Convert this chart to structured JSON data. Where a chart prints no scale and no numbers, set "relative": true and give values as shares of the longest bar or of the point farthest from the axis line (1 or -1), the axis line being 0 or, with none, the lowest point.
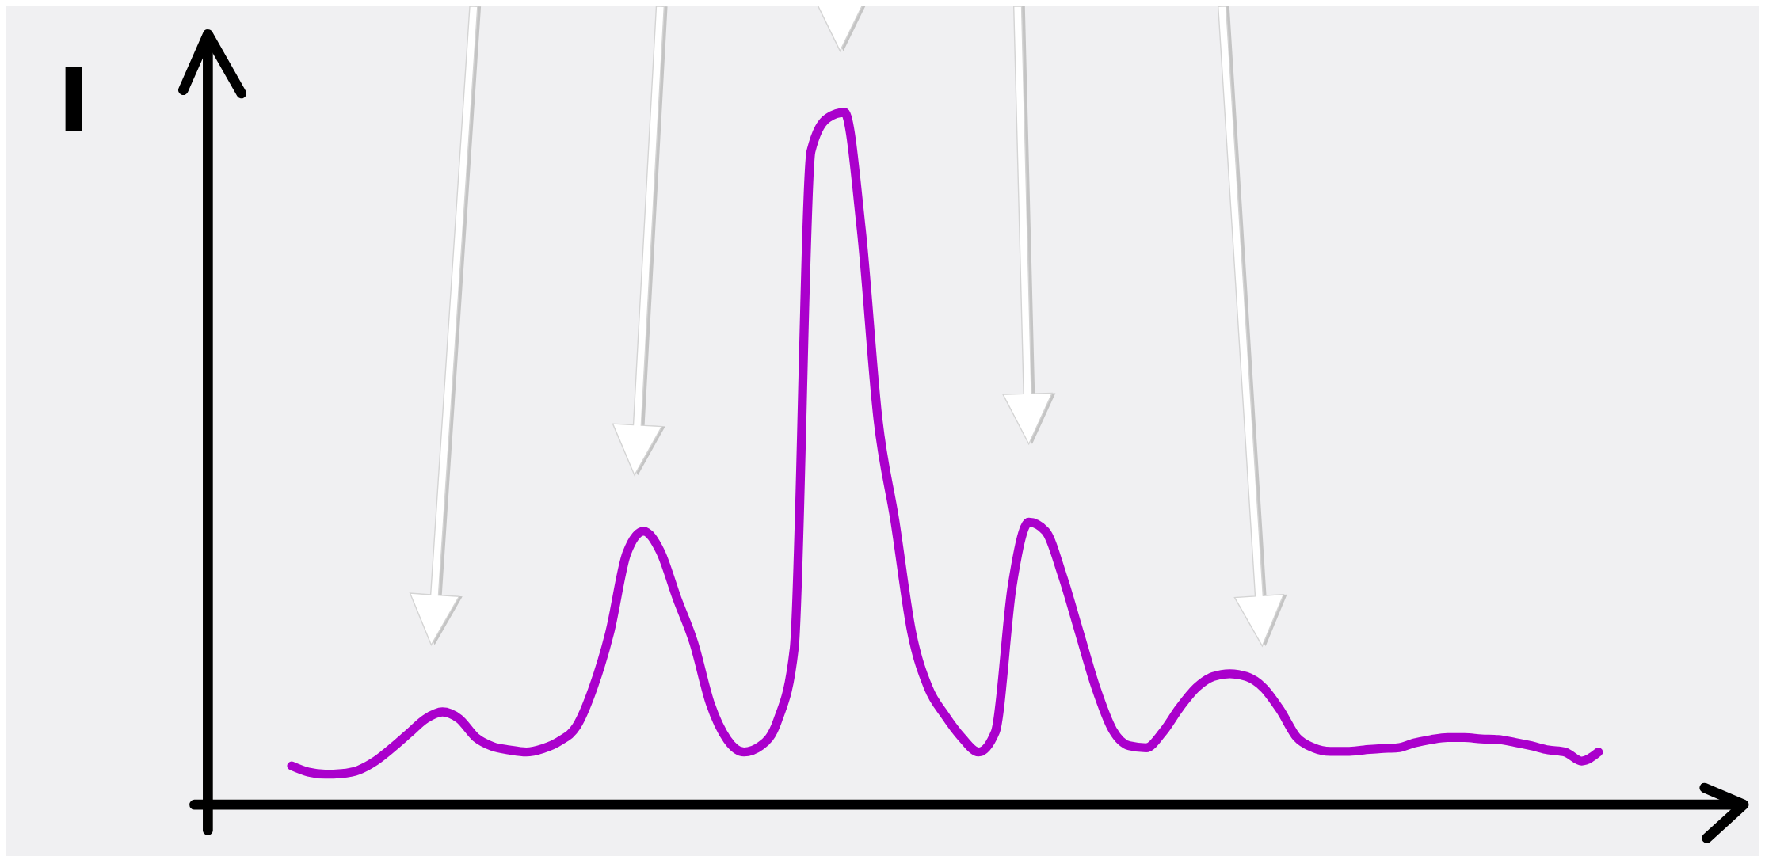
{
  "chart_data": {
    "type": "line",
    "ylabel": "I",
    "relative": true,
    "color": "#aa00cc",
    "categories": [
      null,
      null,
      null,
      null,
      null,
      null,
      null,
      null,
      null,
      null,
      null,
      null,
      null,
      null,
      null,
      null,
      null,
      null,
      null,
      null,
      null,
      null,
      null,
      null,
      null,
      null,
      null,
      null,
      null,
      null,
      null,
      null,
      null,
      null,
      null,
      null,
      null,
      null,
      null,
      null,
      null,
      null,
      null,
      null,
      null,
      null,
      null,
      null,
      null,
      null,
      null,
      null,
      null,
      null,
      null,
      null,
      null,
      null,
      null,
      null,
      null,
      null,
      null,
      null,
      null,
      null,
      null,
      null,
      null,
      null,
      null,
      null,
      null,
      null,
      null,
      null,
      null,
      null,
      null
    ],
    "values": [
      0.056,
      0.047,
      0.044,
      0.045,
      0.05,
      0.063,
      0.082,
      0.103,
      0.124,
      0.134,
      0.124,
      0.097,
      0.084,
      0.079,
      0.076,
      0.081,
      0.092,
      0.113,
      0.169,
      0.25,
      0.363,
      0.395,
      0.366,
      0.298,
      0.234,
      0.145,
      0.094,
      0.076,
      0.085,
      0.121,
      0.226,
      0.944,
      0.992,
      1,
      0.831,
      0.556,
      0.411,
      0.25,
      0.169,
      0.129,
      0.097,
      0.076,
      0.105,
      0.315,
      0.408,
      0.395,
      0.331,
      0.25,
      0.169,
      0.108,
      0.085,
      0.082,
      0.105,
      0.14,
      0.169,
      0.185,
      0.189,
      0.185,
      0.169,
      0.137,
      0.097,
      0.082,
      0.077,
      0.077,
      0.079,
      0.081,
      0.082,
      0.089,
      0.094,
      0.097,
      0.097,
      0.095,
      0.094,
      0.09,
      0.085,
      0.079,
      0.076,
      0.063,
      0.076
    ]
  }
}
